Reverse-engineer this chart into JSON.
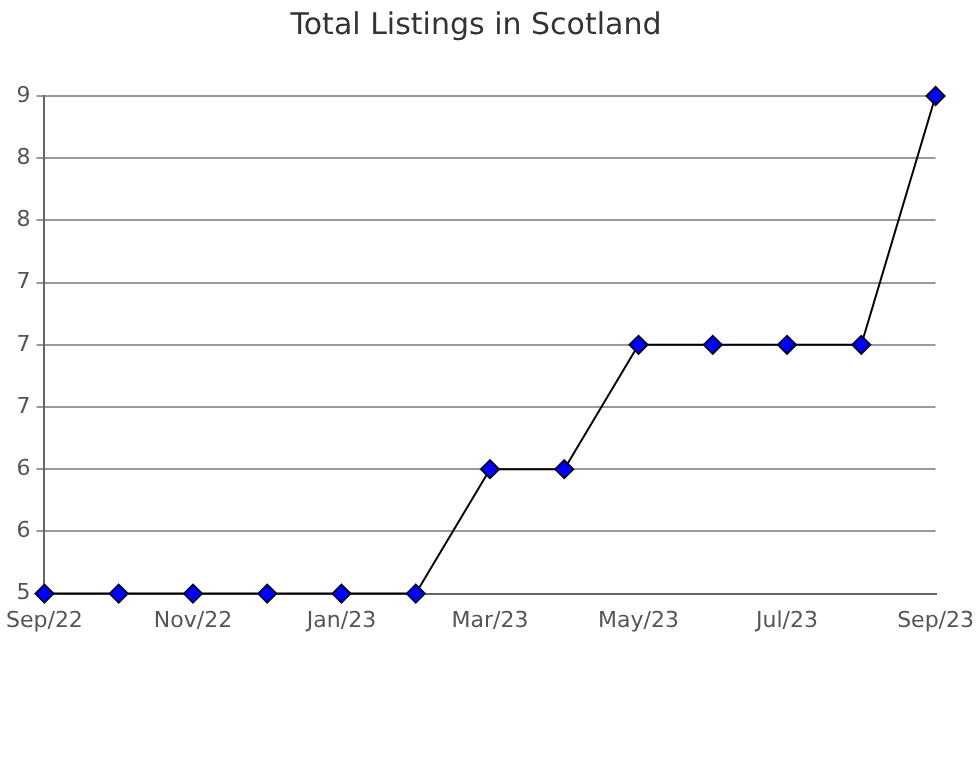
{
  "chart_data": {
    "type": "line",
    "title": "Total Listings in Scotland",
    "categories": [
      "Sep/22",
      null,
      "Nov/22",
      null,
      "Jan/23",
      null,
      "Mar/23",
      null,
      "May/23",
      null,
      "Jul/23",
      null,
      "Sep/23"
    ],
    "series": [
      {
        "color": "#0000ff",
        "values": [
          5,
          5,
          5,
          5,
          5,
          5,
          6,
          6,
          7,
          7,
          7,
          7,
          9
        ]
      }
    ],
    "ylim": [
      5,
      9
    ],
    "yticks": [
      5,
      {
        "value": 5.5,
        "label": "6"
      },
      6,
      {
        "value": 6.5,
        "label": "7"
      },
      7,
      {
        "value": 7.5,
        "label": "7"
      },
      8,
      {
        "value": 8.5,
        "label": "8"
      },
      9
    ],
    "grid": "y",
    "legend": false,
    "marker": "diamond",
    "line_style": "solid"
  }
}
